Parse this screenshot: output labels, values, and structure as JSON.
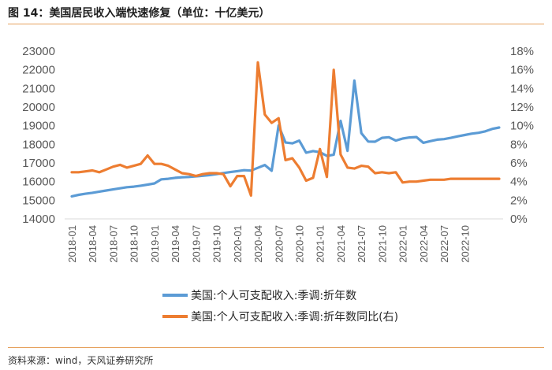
{
  "header": {
    "title": "图 14：美国居民收入端快速修复（单位：十亿美元）",
    "source": "资料来源：wind，天风证券研究所"
  },
  "chart_data": {
    "type": "line",
    "title": "图 14：美国居民收入端快速修复（单位：十亿美元）",
    "y_left": {
      "min": 14000,
      "max": 23000,
      "step": 1000,
      "ticks": [
        "14000",
        "15000",
        "16000",
        "17000",
        "18000",
        "19000",
        "20000",
        "21000",
        "22000",
        "23000"
      ]
    },
    "y_right": {
      "min": 0,
      "max": 18,
      "step": 2,
      "ticks": [
        "0%",
        "2%",
        "4%",
        "6%",
        "8%",
        "10%",
        "12%",
        "14%",
        "16%",
        "18%"
      ]
    },
    "x_tick_labels": [
      "2018-01",
      "2018-04",
      "2018-07",
      "2018-10",
      "2019-01",
      "2019-04",
      "2019-07",
      "2019-10",
      "2020-01",
      "2020-04",
      "2020-07",
      "2020-10",
      "2021-01",
      "2021-04",
      "2021-07",
      "2021-10",
      "2022-01",
      "2022-04",
      "2022-07",
      "2022-10"
    ],
    "x_start": "2018-01",
    "x_end": "2022-11",
    "series": [
      {
        "name": "美国:个人可支配收入:季调:折年数",
        "axis": "left",
        "color": "#5b9bd5",
        "values": [
          15210,
          15290,
          15350,
          15400,
          15460,
          15520,
          15580,
          15640,
          15700,
          15730,
          15780,
          15840,
          15900,
          16120,
          16150,
          16200,
          16230,
          16250,
          16280,
          16310,
          16350,
          16400,
          16460,
          16510,
          16560,
          16610,
          16590,
          16740,
          16890,
          16580,
          19010,
          18100,
          18050,
          18200,
          17550,
          17640,
          17580,
          17380,
          17440,
          19260,
          17650,
          21420,
          18600,
          18150,
          18140,
          18350,
          18380,
          18200,
          18310,
          18370,
          18390,
          18080,
          18170,
          18250,
          18280,
          18350,
          18430,
          18500,
          18570,
          18620,
          18700,
          18830,
          18900
        ]
      },
      {
        "name": "美国:个人可支配收入:季调:折年数同比(右)",
        "axis": "right",
        "color": "#ed7d31",
        "values": [
          5.0,
          5.0,
          5.1,
          5.2,
          5.0,
          5.3,
          5.6,
          5.8,
          5.5,
          5.7,
          5.9,
          6.8,
          5.9,
          5.9,
          5.7,
          5.3,
          4.9,
          4.8,
          4.6,
          4.8,
          4.9,
          4.9,
          4.8,
          3.5,
          4.6,
          4.6,
          2.5,
          16.8,
          11.2,
          10.3,
          10.8,
          6.3,
          6.5,
          5.5,
          4.1,
          4.4,
          7.5,
          4.5,
          16.0,
          6.9,
          5.5,
          5.4,
          5.7,
          5.6,
          4.9,
          5.0,
          4.9,
          5.0,
          3.9,
          4.0,
          4.0,
          4.1,
          4.2,
          4.2,
          4.2,
          4.3,
          4.3,
          4.3,
          4.3,
          4.3,
          4.3,
          4.3,
          4.3
        ]
      }
    ],
    "legend": "bottom"
  }
}
